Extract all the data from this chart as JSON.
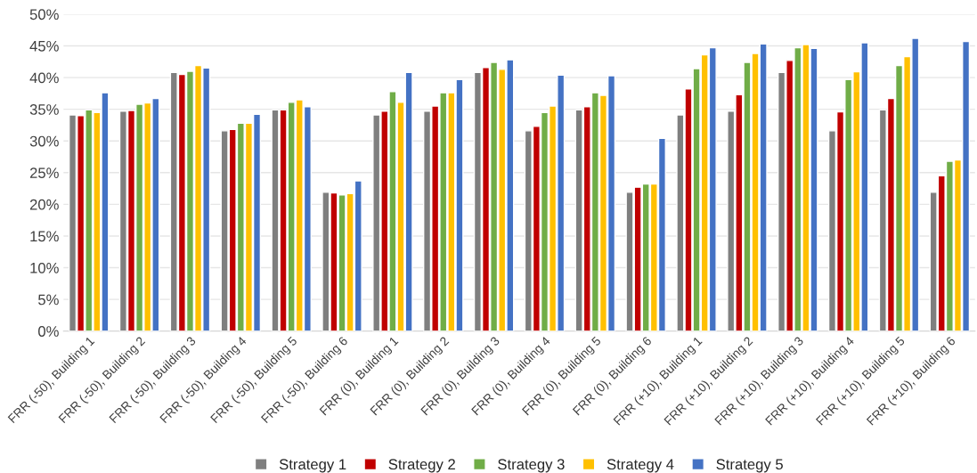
{
  "chart_data": {
    "type": "bar",
    "categories": [
      "FRR (-50), Building 1",
      "FRR (-50), Building 2",
      "FRR (-50), Building 3",
      "FRR (-50), Building 4",
      "FRR (-50), Building 5",
      "FRR (-50), Building 6",
      "FRR (0), Building 1",
      "FRR (0), Building 2",
      "FRR (0), Building 3",
      "FRR (0), Building 4",
      "FRR (0), Building 5",
      "FRR (0), Building 6",
      "FRR (+10), Building 1",
      "FRR (+10), Building 2",
      "FRR (+10), Building 3",
      "FRR (+10), Building 4",
      "FRR (+10), Building 5",
      "FRR (+10), Building 6"
    ],
    "series": [
      {
        "name": "Strategy 1",
        "color": "#7f7f7f",
        "values": [
          34.1,
          34.7,
          40.8,
          31.6,
          34.9,
          21.9,
          34.1,
          34.7,
          40.8,
          31.6,
          34.9,
          21.9,
          34.1,
          34.7,
          40.8,
          31.6,
          34.9,
          21.9
        ]
      },
      {
        "name": "Strategy 2",
        "color": "#c00000",
        "values": [
          34.0,
          34.8,
          40.5,
          31.8,
          34.9,
          21.8,
          34.7,
          35.5,
          41.6,
          32.3,
          35.4,
          22.7,
          38.2,
          37.3,
          42.7,
          34.6,
          36.7,
          24.5
        ]
      },
      {
        "name": "Strategy 3",
        "color": "#70ad47",
        "values": [
          34.9,
          35.8,
          41.0,
          32.8,
          36.1,
          21.5,
          37.8,
          37.6,
          42.4,
          34.5,
          37.6,
          23.2,
          41.4,
          42.4,
          44.7,
          39.7,
          41.9,
          26.8
        ]
      },
      {
        "name": "Strategy 4",
        "color": "#ffc000",
        "values": [
          34.5,
          36.0,
          41.9,
          32.8,
          36.5,
          21.7,
          36.1,
          37.6,
          41.3,
          35.5,
          37.2,
          23.2,
          43.6,
          43.8,
          45.2,
          40.9,
          43.3,
          27.0
        ]
      },
      {
        "name": "Strategy 5",
        "color": "#4472c4",
        "values": [
          37.6,
          36.7,
          41.5,
          34.2,
          35.4,
          23.7,
          40.8,
          39.7,
          42.8,
          40.4,
          40.3,
          30.4,
          44.7,
          45.3,
          44.6,
          45.5,
          46.2,
          45.7
        ]
      }
    ],
    "ylim": [
      0,
      50
    ],
    "yticks": [
      {
        "value": 0,
        "label": "0%"
      },
      {
        "value": 5,
        "label": "5%"
      },
      {
        "value": 10,
        "label": "10%"
      },
      {
        "value": 15,
        "label": "15%"
      },
      {
        "value": 20,
        "label": "20%"
      },
      {
        "value": 25,
        "label": "25%"
      },
      {
        "value": 30,
        "label": "30%"
      },
      {
        "value": 35,
        "label": "35%"
      },
      {
        "value": 40,
        "label": "40%"
      },
      {
        "value": 45,
        "label": "45%"
      },
      {
        "value": 50,
        "label": "50%"
      }
    ],
    "grid": "y",
    "legend": "bottom"
  }
}
